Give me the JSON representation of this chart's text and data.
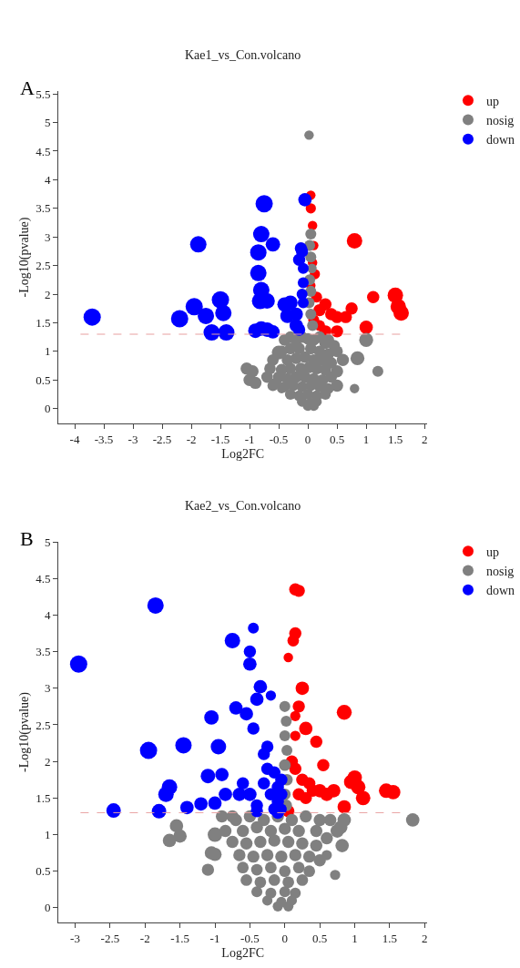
{
  "chart_data": [
    {
      "type": "bubble",
      "title": "Kae1_vs_Con.volcano",
      "xlabel": "Log2FC",
      "ylabel": "-Log10(pvalue)",
      "annotations": [
        "A"
      ],
      "legend": "top right",
      "xlim": [
        -4.28,
        2.05
      ],
      "xticks": [
        -4,
        -3.5,
        -3,
        -2.5,
        -2,
        -1.5,
        -1,
        -0.5,
        0,
        0.5,
        1,
        1.5,
        2
      ],
      "ylim": [
        -0.26,
        5.55
      ],
      "yticks": [
        0,
        0.5,
        1,
        1.5,
        2,
        2.5,
        3,
        3.5,
        4,
        4.5,
        5,
        5.5
      ],
      "ref_lines": [
        {
          "axis": "y",
          "value": 1.3,
          "color": "#e8a0a0",
          "line_style": "dashed"
        }
      ],
      "series": [
        {
          "name": "up",
          "color": "#ff0000",
          "x": [
            0.05,
            0.05,
            0.08,
            0.1,
            0.08,
            0.12,
            0.05,
            0.15,
            0.2,
            0.3,
            0.4,
            0.5,
            0.65,
            0.75,
            0.3,
            0.5,
            0.8,
            1.0,
            1.12,
            1.5,
            1.55,
            1.6,
            0.1,
            0.2
          ],
          "values": [
            3.73,
            3.5,
            3.2,
            2.85,
            2.55,
            2.35,
            2.15,
            1.95,
            1.72,
            1.82,
            1.65,
            1.6,
            1.6,
            1.75,
            1.35,
            1.35,
            2.93,
            1.42,
            1.95,
            1.98,
            1.78,
            1.67,
            1.55,
            1.45
          ],
          "sizes": [
            0.3,
            0.35,
            0.3,
            0.3,
            0.3,
            0.35,
            0.3,
            0.4,
            0.5,
            0.5,
            0.5,
            0.5,
            0.5,
            0.5,
            0.5,
            0.5,
            0.8,
            0.6,
            0.5,
            0.8,
            0.8,
            0.8,
            0.4,
            0.4
          ]
        },
        {
          "name": "nosig",
          "color": "#808080",
          "x": [
            0.02,
            0.05,
            0.03,
            0.05,
            0.07,
            0.03,
            0.05,
            0.02,
            0.05,
            0.08,
            -0.5,
            -1.0,
            -0.9,
            -1.05,
            -0.95,
            -0.55,
            -0.45,
            1.0,
            0.85,
            0.6,
            0.5,
            0.5,
            1.2,
            0.8,
            0.3,
            -0.4,
            -0.3,
            -0.2,
            -0.1,
            0,
            0.1,
            0.2,
            0.35,
            0.45,
            -0.45,
            -0.3,
            -0.15,
            0.05,
            0.2,
            0.35,
            0.5,
            -0.6,
            -0.35,
            -0.2,
            -0.05,
            0.1,
            0.25,
            0.4,
            -0.65,
            -0.45,
            -0.3,
            -0.12,
            0.02,
            0.15,
            0.3,
            -0.7,
            -0.5,
            -0.35,
            -0.2,
            -0.05,
            0.1,
            0.25,
            0.4,
            -0.6,
            -0.4,
            -0.25,
            -0.1,
            0.05,
            0.2,
            0.35,
            -0.3,
            -0.15,
            0,
            0.15,
            0.3,
            -0.1,
            0.05,
            0.15,
            0,
            0.1
          ],
          "values": [
            4.78,
            3.05,
            2.85,
            2.65,
            2.45,
            2.25,
            2.05,
            1.85,
            1.65,
            1.45,
            0.98,
            0.5,
            0.45,
            0.7,
            0.65,
            0.45,
            0.35,
            1.2,
            0.88,
            0.85,
            0.65,
            0.4,
            0.65,
            0.35,
            1.15,
            1.2,
            1.25,
            1.2,
            1.25,
            1.22,
            1.2,
            1.25,
            1.2,
            1.1,
            1.0,
            1.05,
            1.05,
            1.05,
            1.0,
            0.95,
            1.0,
            0.85,
            0.85,
            0.88,
            0.9,
            0.85,
            0.85,
            0.8,
            0.7,
            0.68,
            0.7,
            0.7,
            0.72,
            0.7,
            0.68,
            0.55,
            0.55,
            0.52,
            0.55,
            0.55,
            0.52,
            0.5,
            0.55,
            0.4,
            0.38,
            0.4,
            0.38,
            0.4,
            0.38,
            0.35,
            0.25,
            0.22,
            0.25,
            0.22,
            0.25,
            0.12,
            0.1,
            0.12,
            0.05,
            0.05
          ],
          "sizes": [
            0.3,
            0.4,
            0.4,
            0.4,
            0.3,
            0.4,
            0.4,
            0.4,
            0.4,
            0.4,
            0.65,
            0.5,
            0.5,
            0.5,
            0.5,
            0.4,
            0.3,
            0.65,
            0.65,
            0.5,
            0.5,
            0.5,
            0.4,
            0.3,
            0.5,
            0.45,
            0.45,
            0.45,
            0.45,
            0.45,
            0.45,
            0.45,
            0.45,
            0.45,
            0.45,
            0.45,
            0.45,
            0.45,
            0.45,
            0.45,
            0.45,
            0.45,
            0.45,
            0.45,
            0.45,
            0.45,
            0.45,
            0.45,
            0.45,
            0.45,
            0.45,
            0.45,
            0.45,
            0.45,
            0.45,
            0.45,
            0.45,
            0.45,
            0.45,
            0.45,
            0.45,
            0.45,
            0.45,
            0.4,
            0.4,
            0.4,
            0.4,
            0.4,
            0.4,
            0.4,
            0.4,
            0.4,
            0.4,
            0.4,
            0.4,
            0.35,
            0.35,
            0.35,
            0.35,
            0.35
          ]
        },
        {
          "name": "down",
          "color": "#0000ff",
          "x": [
            -3.7,
            -2.2,
            -1.95,
            -1.75,
            -1.5,
            -1.45,
            -1.65,
            -1.4,
            -1.88,
            -0.75,
            -0.8,
            -0.85,
            -0.6,
            -0.85,
            -0.8,
            -0.82,
            -0.7,
            -0.9,
            -0.8,
            -0.7,
            -0.6,
            -0.4,
            -0.3,
            -0.35,
            -0.2,
            -0.2,
            -0.15,
            -0.12,
            -0.1,
            -0.05,
            -0.08,
            -0.08,
            -0.1,
            -0.08,
            -0.15
          ],
          "values": [
            1.6,
            1.57,
            1.78,
            1.62,
            1.9,
            1.67,
            1.33,
            1.33,
            2.87,
            3.58,
            3.05,
            2.73,
            2.87,
            2.37,
            2.07,
            1.88,
            1.88,
            1.36,
            1.4,
            1.38,
            1.34,
            1.82,
            1.85,
            1.62,
            1.65,
            1.45,
            2.6,
            2.8,
            2.75,
            3.65,
            2.45,
            2.2,
            2.0,
            1.85,
            1.38
          ],
          "sizes": [
            1,
            1,
            1,
            0.9,
            1,
            0.9,
            0.9,
            0.9,
            0.9,
            1,
            0.9,
            0.9,
            0.7,
            0.9,
            0.9,
            0.9,
            0.8,
            0.7,
            0.7,
            0.7,
            0.6,
            0.7,
            0.7,
            0.7,
            0.6,
            0.6,
            0.5,
            0.5,
            0.5,
            0.6,
            0.4,
            0.4,
            0.4,
            0.4,
            0.5
          ]
        }
      ]
    },
    {
      "type": "bubble",
      "title": "Kae2_vs_Con.volcano",
      "xlabel": "Log2FC",
      "ylabel": "-Log10(pvalue)",
      "annotations": [
        "B"
      ],
      "legend": "top right",
      "xlim": [
        -3.24,
        2.04
      ],
      "xticks": [
        -3,
        -2.5,
        -2,
        -1.5,
        -1,
        -0.5,
        0,
        0.5,
        1,
        1.5,
        2
      ],
      "ylim": [
        -0.2,
        5
      ],
      "yticks": [
        0,
        0.5,
        1,
        1.5,
        2,
        2.5,
        3,
        3.5,
        4,
        4.5,
        5
      ],
      "ref_lines": [
        {
          "axis": "y",
          "value": 1.3,
          "color": "#e8a0a0",
          "line_style": "dashed"
        }
      ],
      "series": [
        {
          "name": "up",
          "color": "#ff0000",
          "x": [
            0.15,
            0.2,
            0.15,
            0.12,
            0.05,
            0.25,
            0.2,
            0.15,
            0.3,
            0.45,
            0.85,
            0.15,
            0.1,
            0.15,
            0.25,
            0.55,
            0.4,
            0.35,
            0.5,
            0.6,
            0.7,
            0.3,
            0.2,
            1.0,
            0.95,
            1.05,
            1.12,
            0.85,
            1.45,
            1.55,
            0.05
          ],
          "values": [
            4.35,
            4.33,
            3.75,
            3.65,
            3.42,
            3.0,
            2.75,
            2.62,
            2.45,
            2.27,
            2.67,
            2.35,
            2.0,
            1.9,
            1.75,
            1.95,
            1.6,
            1.7,
            1.6,
            1.55,
            1.6,
            1.5,
            1.55,
            1.78,
            1.72,
            1.65,
            1.5,
            1.38,
            1.6,
            1.58,
            1.32
          ],
          "sizes": [
            0.5,
            0.5,
            0.5,
            0.45,
            0.3,
            0.6,
            0.5,
            0.35,
            0.6,
            0.5,
            0.75,
            0.35,
            0.5,
            0.5,
            0.5,
            0.5,
            0.5,
            0.5,
            0.6,
            0.6,
            0.6,
            0.5,
            0.5,
            0.7,
            0.7,
            0.7,
            0.7,
            0.6,
            0.7,
            0.7,
            0.5
          ]
        },
        {
          "name": "nosig",
          "color": "#808080",
          "x": [
            0.0,
            0.02,
            0.0,
            0.03,
            0.0,
            0.03,
            0.0,
            0.02,
            1.83,
            0.85,
            0.8,
            0.75,
            0.82,
            0.6,
            0.72,
            -1.55,
            -1.5,
            -1.65,
            -1.0,
            -1.0,
            -1.05,
            -1.1,
            -0.75,
            -0.9,
            -0.7,
            -0.5,
            -0.3,
            -0.1,
            0.1,
            0.3,
            0.5,
            0.65,
            -0.85,
            -0.6,
            -0.4,
            -0.2,
            0,
            0.2,
            0.45,
            0.6,
            -0.75,
            -0.55,
            -0.35,
            -0.15,
            0.05,
            0.25,
            0.45,
            -0.65,
            -0.45,
            -0.25,
            -0.05,
            0.15,
            0.35,
            0.5,
            -0.6,
            -0.4,
            -0.2,
            0,
            0.2,
            0.35,
            -0.55,
            -0.35,
            -0.15,
            0.05,
            0.25,
            -0.4,
            -0.2,
            0,
            0.15,
            -0.25,
            -0.05,
            0.1,
            -0.1,
            0.05
          ],
          "values": [
            2.75,
            2.55,
            2.35,
            2.15,
            1.95,
            1.75,
            1.55,
            1.4,
            1.2,
            1.2,
            1.1,
            1.05,
            0.85,
            0.72,
            0.45,
            1.12,
            0.98,
            0.92,
            1.0,
            0.73,
            0.75,
            0.52,
            1.25,
            1.25,
            1.2,
            1.25,
            1.2,
            1.25,
            1.2,
            1.25,
            1.2,
            1.2,
            1.05,
            1.05,
            1.1,
            1.05,
            1.08,
            1.05,
            1.05,
            0.95,
            0.9,
            0.88,
            0.9,
            0.92,
            0.9,
            0.88,
            0.85,
            0.72,
            0.7,
            0.72,
            0.7,
            0.72,
            0.7,
            0.65,
            0.55,
            0.52,
            0.55,
            0.5,
            0.55,
            0.5,
            0.38,
            0.35,
            0.38,
            0.35,
            0.38,
            0.22,
            0.2,
            0.22,
            0.2,
            0.1,
            0.08,
            0.1,
            0.02,
            0.02
          ],
          "sizes": [
            0.4,
            0.4,
            0.4,
            0.4,
            0.45,
            0.45,
            0.45,
            0.45,
            0.6,
            0.6,
            0.6,
            0.6,
            0.6,
            0.35,
            0.35,
            0.6,
            0.6,
            0.6,
            0.7,
            0.6,
            0.6,
            0.5,
            0.5,
            0.5,
            0.5,
            0.5,
            0.5,
            0.5,
            0.5,
            0.5,
            0.5,
            0.5,
            0.5,
            0.5,
            0.5,
            0.5,
            0.5,
            0.5,
            0.5,
            0.5,
            0.5,
            0.5,
            0.5,
            0.5,
            0.5,
            0.5,
            0.5,
            0.5,
            0.5,
            0.5,
            0.5,
            0.5,
            0.5,
            0.5,
            0.45,
            0.45,
            0.45,
            0.45,
            0.45,
            0.45,
            0.45,
            0.45,
            0.45,
            0.45,
            0.45,
            0.4,
            0.4,
            0.4,
            0.4,
            0.35,
            0.35,
            0.35,
            0.35,
            0.35
          ]
        },
        {
          "name": "down",
          "color": "#0000ff",
          "x": [
            -2.95,
            -1.85,
            -0.75,
            -0.45,
            -0.5,
            -0.5,
            -0.35,
            -0.55,
            -0.7,
            -0.4,
            -0.2,
            -0.45,
            -1.05,
            -1.95,
            -1.45,
            -0.95,
            -0.3,
            -1.65,
            -1.7,
            -2.45,
            -1.8,
            -1.4,
            -1.2,
            -1.1,
            -0.9,
            -1.0,
            -0.85,
            -0.6,
            -0.5,
            -0.65,
            -0.4,
            -0.4,
            -0.3,
            -0.25,
            -0.15,
            -0.1,
            -0.1,
            -0.2,
            -0.15,
            -0.05,
            -0.05,
            -0.1,
            -0.05,
            -0.25
          ],
          "values": [
            3.33,
            4.13,
            3.65,
            3.82,
            3.5,
            3.33,
            3.02,
            2.65,
            2.73,
            2.85,
            2.9,
            2.45,
            2.6,
            2.15,
            2.22,
            2.2,
            2.1,
            1.65,
            1.55,
            1.33,
            1.32,
            1.37,
            1.42,
            1.8,
            1.82,
            1.43,
            1.55,
            1.7,
            1.55,
            1.55,
            1.4,
            1.32,
            1.7,
            1.9,
            1.85,
            1.65,
            1.45,
            1.55,
            1.35,
            1.75,
            1.55,
            1.3,
            1.35,
            2.2
          ],
          "sizes": [
            1,
            0.9,
            0.8,
            0.4,
            0.5,
            0.6,
            0.6,
            0.6,
            0.6,
            0.6,
            0.35,
            0.5,
            0.7,
            1,
            0.9,
            0.8,
            0.5,
            0.8,
            0.8,
            0.7,
            0.7,
            0.6,
            0.6,
            0.7,
            0.6,
            0.6,
            0.6,
            0.5,
            0.6,
            0.6,
            0.5,
            0.5,
            0.5,
            0.5,
            0.5,
            0.5,
            0.5,
            0.5,
            0.5,
            0.5,
            0.5,
            0.5,
            0.4,
            0.5
          ]
        }
      ]
    }
  ]
}
